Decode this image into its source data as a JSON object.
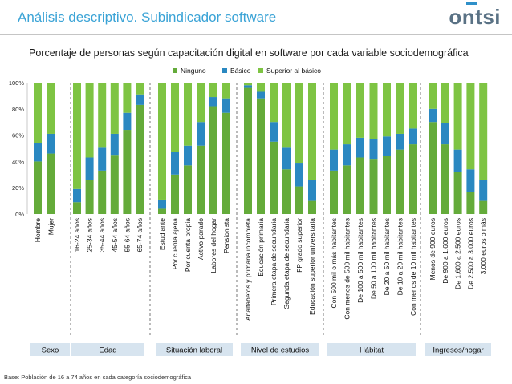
{
  "header": {
    "title": "Análisis descriptivo. Subindicador software",
    "logo": "ontsi"
  },
  "footnote": "Base: Población de 16 a 74 años en cada categoría sociodemográfica",
  "colors": {
    "ninguno": "#64ab3a",
    "basico": "#2a88c1",
    "superior": "#7ec443",
    "box": "#d7e4ef"
  },
  "chart_data": {
    "type": "bar",
    "stacked": true,
    "title": "Porcentaje de personas según capacitación digital en software por cada variable sociodemográfica",
    "ylim": [
      0,
      100
    ],
    "yticks": [
      "0%",
      "20%",
      "40%",
      "60%",
      "80%",
      "100%"
    ],
    "legend": [
      "Ninguno",
      "Básico",
      "Superior al básico"
    ],
    "legend_position": "top-right",
    "groups": [
      {
        "name": "Sexo",
        "categories": [
          "Hombre",
          "Mujer"
        ],
        "ninguno": [
          40,
          46
        ],
        "basico": [
          14,
          15
        ]
      },
      {
        "name": "Edad",
        "categories": [
          "16-24 años",
          "25-34 años",
          "35-44 años",
          "45-54 años",
          "55-64 años",
          "65-74 años"
        ],
        "ninguno": [
          9,
          26,
          33,
          45,
          64,
          83
        ],
        "basico": [
          10,
          17,
          18,
          16,
          13,
          8
        ]
      },
      {
        "name": "Situación laboral",
        "categories": [
          "Estudiante",
          "Por cuenta ajena",
          "Por cuenta propia",
          "Activo parado",
          "Labores del hogar",
          "Pensionista"
        ],
        "ninguno": [
          4,
          30,
          37,
          52,
          82,
          77
        ],
        "basico": [
          7,
          17,
          15,
          18,
          7,
          11
        ]
      },
      {
        "name": "Nivel de estudios",
        "categories": [
          "Analfabetos y primaria incompleta",
          "Educación primaria",
          "Primera etapa de secundaria",
          "Segunda etapa de secundaria",
          "FP grado superior",
          "Educación superior universitaria"
        ],
        "ninguno": [
          96,
          88,
          55,
          34,
          21,
          10
        ],
        "basico": [
          2,
          5,
          15,
          17,
          18,
          16
        ]
      },
      {
        "name": "Hábitat",
        "categories": [
          "Con 500 mil o más habitantes",
          "Con menos de 500 mil habitantes",
          "De 100 a 500 mil habitantes",
          "De 50 a 100 mil habitantes",
          "De 20 a 50 mil habitantes",
          "De 10 a 20 mil habitantes",
          "Con menos de 10 mil habitantes"
        ],
        "ninguno": [
          33,
          37,
          43,
          42,
          44,
          49,
          53
        ],
        "basico": [
          16,
          16,
          15,
          15,
          15,
          12,
          12
        ]
      },
      {
        "name": "Ingresos/hogar",
        "categories": [
          "Menos de 900 euros",
          "De 900 a 1.600 euros",
          "De 1.600 a 2.500 euros",
          "De 2.500 a 3.000 euros",
          "3.000 euros o más"
        ],
        "ninguno": [
          70,
          53,
          32,
          17,
          10
        ],
        "basico": [
          10,
          16,
          17,
          17,
          16
        ]
      }
    ]
  }
}
